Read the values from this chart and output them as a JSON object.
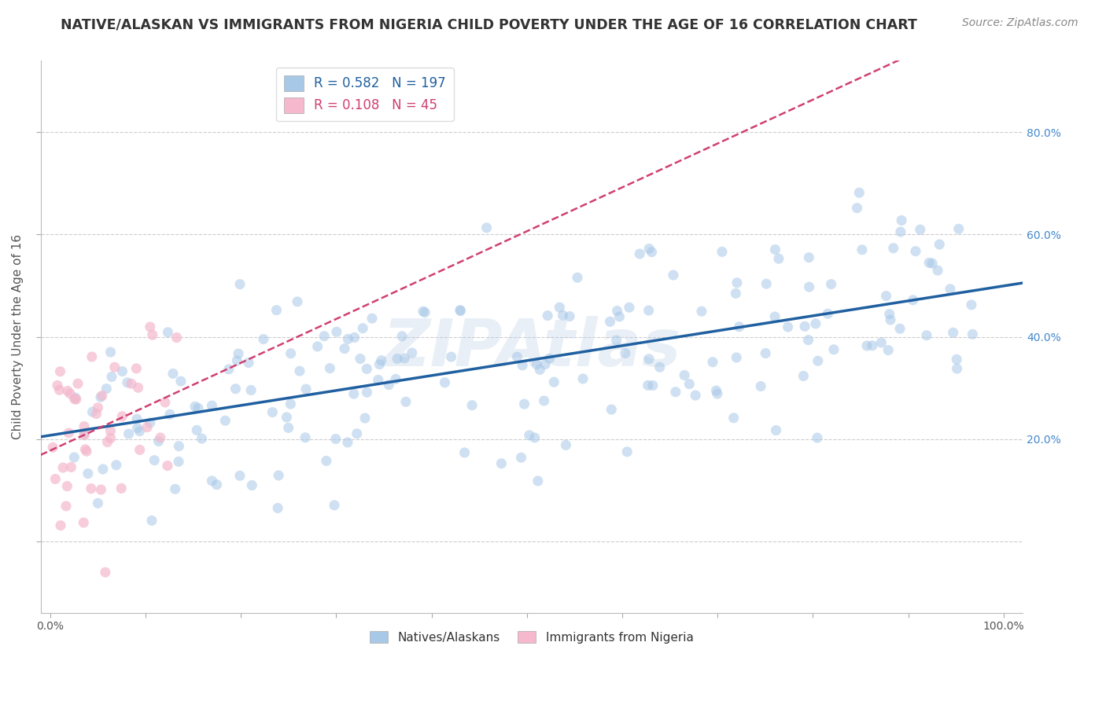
{
  "title": "NATIVE/ALASKAN VS IMMIGRANTS FROM NIGERIA CHILD POVERTY UNDER THE AGE OF 16 CORRELATION CHART",
  "source": "Source: ZipAtlas.com",
  "ylabel_text": "Child Poverty Under the Age of 16",
  "xlim": [
    -0.01,
    1.02
  ],
  "ylim": [
    -0.14,
    0.94
  ],
  "blue_color": "#a8c8e8",
  "pink_color": "#f5b8cc",
  "blue_line_color": "#2060a0",
  "pink_line_color": "#d04070",
  "legend_R1": "R = 0.582",
  "legend_N1": "N = 197",
  "legend_R2": "R = 0.108",
  "legend_N2": "N =  45",
  "watermark": "ZIPAtlas",
  "title_fontsize": 12.5,
  "axis_label_fontsize": 11,
  "tick_fontsize": 10,
  "source_fontsize": 10,
  "blue_n": 197,
  "pink_n": 45,
  "blue_R": 0.582,
  "pink_R": 0.108,
  "background_color": "#ffffff",
  "grid_color": "#cccccc",
  "ytick_vals": [
    0.0,
    0.2,
    0.4,
    0.6,
    0.8
  ],
  "ytick_labels": [
    "",
    "20.0%",
    "40.0%",
    "60.0%",
    "80.0%"
  ],
  "grid_yticks": [
    0.0,
    0.2,
    0.4,
    0.6,
    0.8
  ],
  "xtick_minor_vals": [
    0.0,
    0.1,
    0.2,
    0.3,
    0.4,
    0.5,
    0.6,
    0.7,
    0.8,
    0.9,
    1.0
  ]
}
